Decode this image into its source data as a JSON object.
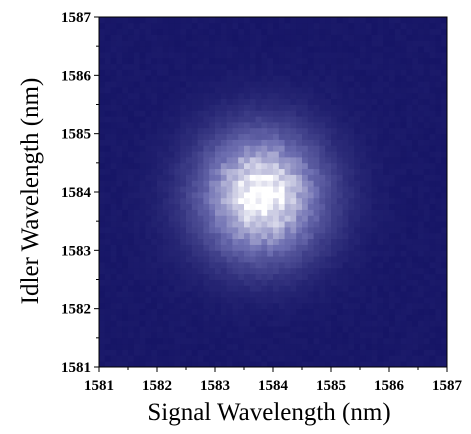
{
  "chart_data": {
    "type": "heatmap",
    "xlabel": "Signal Wavelength (nm)",
    "ylabel": "Idler Wavelength (nm)",
    "xlim": [
      1581,
      1587
    ],
    "ylim": [
      1581,
      1587
    ],
    "x_ticks": [
      "1581",
      "1582",
      "1583",
      "1584",
      "1585",
      "1586",
      "1587"
    ],
    "y_ticks": [
      "1581",
      "1582",
      "1583",
      "1584",
      "1585",
      "1586",
      "1587"
    ],
    "x_tick_values": [
      1581,
      1582,
      1583,
      1584,
      1585,
      1586,
      1587
    ],
    "y_tick_values": [
      1581,
      1582,
      1583,
      1584,
      1585,
      1586,
      1587
    ],
    "grid": false,
    "colormap": {
      "low": "#161566",
      "mid": "#6f70b2",
      "high": "#ffffff"
    },
    "peak": {
      "signal_center": 1583.8,
      "idler_center": 1583.95,
      "width_sigma": 0.75,
      "relative_intensity": 1.0
    }
  }
}
